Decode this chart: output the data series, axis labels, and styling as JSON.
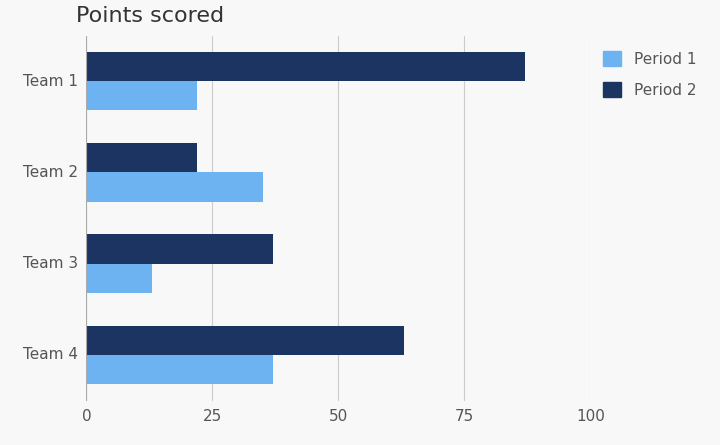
{
  "title": "Points scored",
  "categories": [
    "Team 1",
    "Team 2",
    "Team 3",
    "Team 4"
  ],
  "period1": [
    22,
    35,
    13,
    37
  ],
  "period2": [
    87,
    22,
    37,
    63
  ],
  "color_period1": "#6db3f2",
  "color_period2": "#1c3461",
  "xlim": [
    0,
    100
  ],
  "xticks": [
    0,
    25,
    50,
    75,
    100
  ],
  "legend_labels": [
    "Period 1",
    "Period 2"
  ],
  "title_fontsize": 16,
  "tick_fontsize": 11,
  "legend_fontsize": 11,
  "bar_height": 0.32,
  "background_color": "#f8f8f8",
  "grid_color": "#cccccc"
}
